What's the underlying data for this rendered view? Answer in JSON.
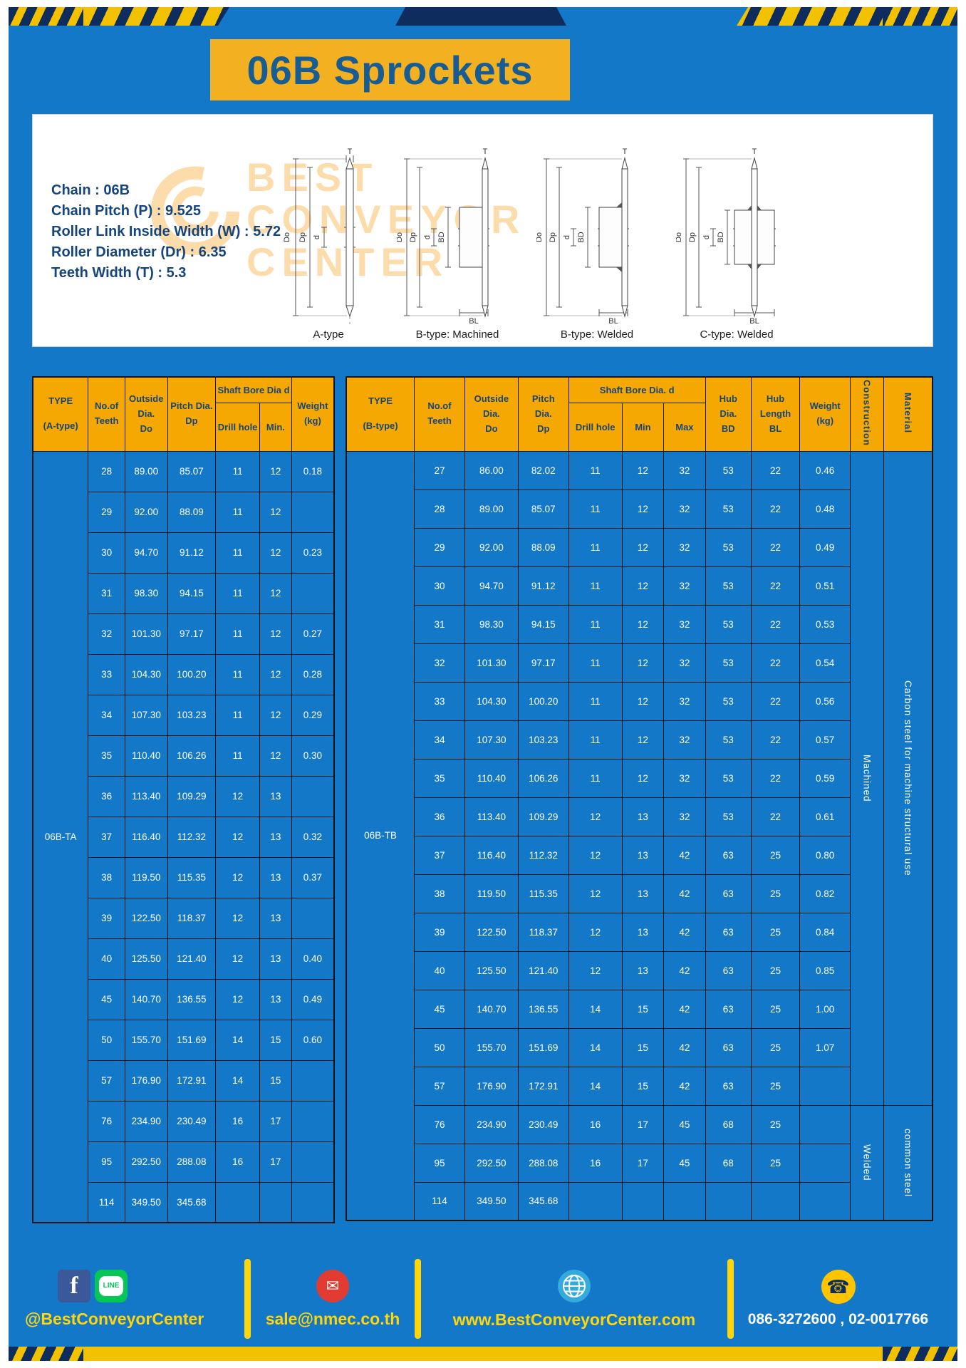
{
  "title": "06B Sprockets",
  "specs": [
    "Chain : 06B",
    "Chain Pitch (P) : 9.525",
    "Roller Link Inside Width (W) : 5.72",
    "Roller Diameter (Dr) : 6.35",
    "Teeth Width (T) : 5.3"
  ],
  "diagram_labels": [
    "A-type",
    "B-type: Machined",
    "B-type: Welded",
    "C-type: Welded"
  ],
  "dims": {
    "t": "T",
    "do": "Do",
    "dp": "Dp",
    "d": "d",
    "bd": "BD",
    "bl": "BL"
  },
  "watermark": [
    "BEST",
    "CONVEYOR",
    "CENTER"
  ],
  "table_a": {
    "h_type1": "TYPE",
    "h_type2": "(A-type)",
    "h_teeth1": "No.of",
    "h_teeth2": "Teeth",
    "h_out1": "Outside",
    "h_out2": "Dia.",
    "h_out3": "Do",
    "h_pitch1": "Pitch Dia.",
    "h_pitch2": "Dp",
    "h_bore": "Shaft Bore Dia d",
    "h_drill": "Drill hole",
    "h_min": "Min.",
    "h_weight1": "Weight",
    "h_weight2": "(kg)",
    "type_label": "06B-TA",
    "rows": [
      [
        "28",
        "89.00",
        "85.07",
        "11",
        "12",
        "0.18"
      ],
      [
        "29",
        "92.00",
        "88.09",
        "11",
        "12",
        ""
      ],
      [
        "30",
        "94.70",
        "91.12",
        "11",
        "12",
        "0.23"
      ],
      [
        "31",
        "98.30",
        "94.15",
        "11",
        "12",
        ""
      ],
      [
        "32",
        "101.30",
        "97.17",
        "11",
        "12",
        "0.27"
      ],
      [
        "33",
        "104.30",
        "100.20",
        "11",
        "12",
        "0.28"
      ],
      [
        "34",
        "107.30",
        "103.23",
        "11",
        "12",
        "0.29"
      ],
      [
        "35",
        "110.40",
        "106.26",
        "11",
        "12",
        "0.30"
      ],
      [
        "36",
        "113.40",
        "109.29",
        "12",
        "13",
        ""
      ],
      [
        "37",
        "116.40",
        "112.32",
        "12",
        "13",
        "0.32"
      ],
      [
        "38",
        "119.50",
        "115.35",
        "12",
        "13",
        "0.37"
      ],
      [
        "39",
        "122.50",
        "118.37",
        "12",
        "13",
        ""
      ],
      [
        "40",
        "125.50",
        "121.40",
        "12",
        "13",
        "0.40"
      ],
      [
        "45",
        "140.70",
        "136.55",
        "12",
        "13",
        "0.49"
      ],
      [
        "50",
        "155.70",
        "151.69",
        "14",
        "15",
        "0.60"
      ],
      [
        "57",
        "176.90",
        "172.91",
        "14",
        "15",
        ""
      ],
      [
        "76",
        "234.90",
        "230.49",
        "16",
        "17",
        ""
      ],
      [
        "95",
        "292.50",
        "288.08",
        "16",
        "17",
        ""
      ],
      [
        "114",
        "349.50",
        "345.68",
        "",
        "",
        ""
      ]
    ]
  },
  "table_b": {
    "h_type1": "TYPE",
    "h_type2": "(B-type)",
    "h_teeth1": "No.of",
    "h_teeth2": "Teeth",
    "h_out1": "Outside",
    "h_out2": "Dia.",
    "h_out3": "Do",
    "h_pitch1": "Pitch",
    "h_pitch2": "Dia.",
    "h_pitch3": "Dp",
    "h_bore": "Shaft Bore Dia. d",
    "h_drill": "Drill hole",
    "h_min": "Min",
    "h_max": "Max",
    "h_hubd1": "Hub",
    "h_hubd2": "Dia.",
    "h_hubd3": "BD",
    "h_hubl1": "Hub",
    "h_hubl2": "Length",
    "h_hubl3": "BL",
    "h_weight1": "Weight",
    "h_weight2": "(kg)",
    "h_construction": "Construction",
    "h_material": "Material",
    "type_label": "06B-TB",
    "rows": [
      [
        "27",
        "86.00",
        "82.02",
        "11",
        "12",
        "32",
        "53",
        "22",
        "0.46"
      ],
      [
        "28",
        "89.00",
        "85.07",
        "11",
        "12",
        "32",
        "53",
        "22",
        "0.48"
      ],
      [
        "29",
        "92.00",
        "88.09",
        "11",
        "12",
        "32",
        "53",
        "22",
        "0.49"
      ],
      [
        "30",
        "94.70",
        "91.12",
        "11",
        "12",
        "32",
        "53",
        "22",
        "0.51"
      ],
      [
        "31",
        "98.30",
        "94.15",
        "11",
        "12",
        "32",
        "53",
        "22",
        "0.53"
      ],
      [
        "32",
        "101.30",
        "97.17",
        "11",
        "12",
        "32",
        "53",
        "22",
        "0.54"
      ],
      [
        "33",
        "104.30",
        "100.20",
        "11",
        "12",
        "32",
        "53",
        "22",
        "0.56"
      ],
      [
        "34",
        "107.30",
        "103.23",
        "11",
        "12",
        "32",
        "53",
        "22",
        "0.57"
      ],
      [
        "35",
        "110.40",
        "106.26",
        "11",
        "12",
        "32",
        "53",
        "22",
        "0.59"
      ],
      [
        "36",
        "113.40",
        "109.29",
        "12",
        "13",
        "32",
        "53",
        "22",
        "0.61"
      ],
      [
        "37",
        "116.40",
        "112.32",
        "12",
        "13",
        "42",
        "63",
        "25",
        "0.80"
      ],
      [
        "38",
        "119.50",
        "115.35",
        "12",
        "13",
        "42",
        "63",
        "25",
        "0.82"
      ],
      [
        "39",
        "122.50",
        "118.37",
        "12",
        "13",
        "42",
        "63",
        "25",
        "0.84"
      ],
      [
        "40",
        "125.50",
        "121.40",
        "12",
        "13",
        "42",
        "63",
        "25",
        "0.85"
      ],
      [
        "45",
        "140.70",
        "136.55",
        "14",
        "15",
        "42",
        "63",
        "25",
        "1.00"
      ],
      [
        "50",
        "155.70",
        "151.69",
        "14",
        "15",
        "42",
        "63",
        "25",
        "1.07"
      ],
      [
        "57",
        "176.90",
        "172.91",
        "14",
        "15",
        "42",
        "63",
        "25",
        ""
      ],
      [
        "76",
        "234.90",
        "230.49",
        "16",
        "17",
        "45",
        "68",
        "25",
        ""
      ],
      [
        "95",
        "292.50",
        "288.08",
        "16",
        "17",
        "45",
        "68",
        "25",
        ""
      ],
      [
        "114",
        "349.50",
        "345.68",
        "",
        "",
        "",
        "",
        "",
        ""
      ]
    ],
    "construction_groups": [
      {
        "label": "Machined",
        "rows": 17
      },
      {
        "label": "Welded",
        "rows": 3
      }
    ],
    "material_groups": [
      {
        "label": "Carbon steel for machine structural use",
        "rows": 17
      },
      {
        "label": "common steel",
        "rows": 3
      }
    ]
  },
  "footer": {
    "social_label": "@BestConveyorCenter",
    "email": "sale@nmec.co.th",
    "website": "www.BestConveyorCenter.com",
    "phones": "086-3272600 , 02-0017766"
  },
  "icons": {
    "facebook": "f",
    "line": "LINE",
    "email": "✉",
    "phone": "☎"
  },
  "colors": {
    "page_blue": "#1478c9",
    "header_yellow": "#f5a801",
    "banner_yellow": "#f3b021",
    "navy": "#0e2d5e",
    "text_navy": "#16457c",
    "footer_yellow": "#ffd60a",
    "strip_yellow": "#f2c100",
    "watermark_orange": "#f5a623"
  }
}
